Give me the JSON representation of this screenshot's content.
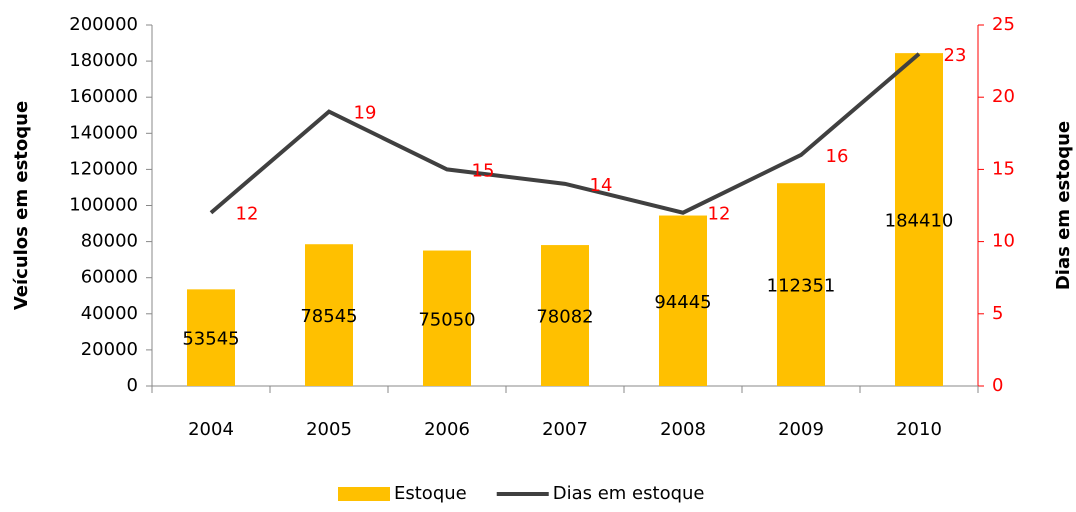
{
  "chart_data": {
    "type": "bar-line",
    "categories": [
      "2004",
      "2005",
      "2006",
      "2007",
      "2008",
      "2009",
      "2010"
    ],
    "y_label": "Veículos em estoque",
    "y2_label": "Dias em estoque",
    "series": [
      {
        "name": "Estoque",
        "type": "bar",
        "color": "#ffc000",
        "values": [
          53545,
          78545,
          75050,
          78082,
          94445,
          112351,
          184410
        ]
      },
      {
        "name": "Dias em estoque",
        "type": "line",
        "axis": "y2",
        "color": "#404040",
        "label_color": "#ff0000",
        "values": [
          12,
          19,
          15,
          14,
          12,
          16,
          23
        ]
      }
    ],
    "ylim": [
      0,
      200000
    ],
    "yticks": [
      0,
      20000,
      40000,
      60000,
      80000,
      100000,
      120000,
      140000,
      160000,
      180000,
      200000
    ],
    "y2lim": [
      0,
      25
    ],
    "y2ticks": [
      0,
      5,
      10,
      15,
      20,
      25
    ],
    "y2_color": "#ff0000",
    "legend": "bottom"
  }
}
